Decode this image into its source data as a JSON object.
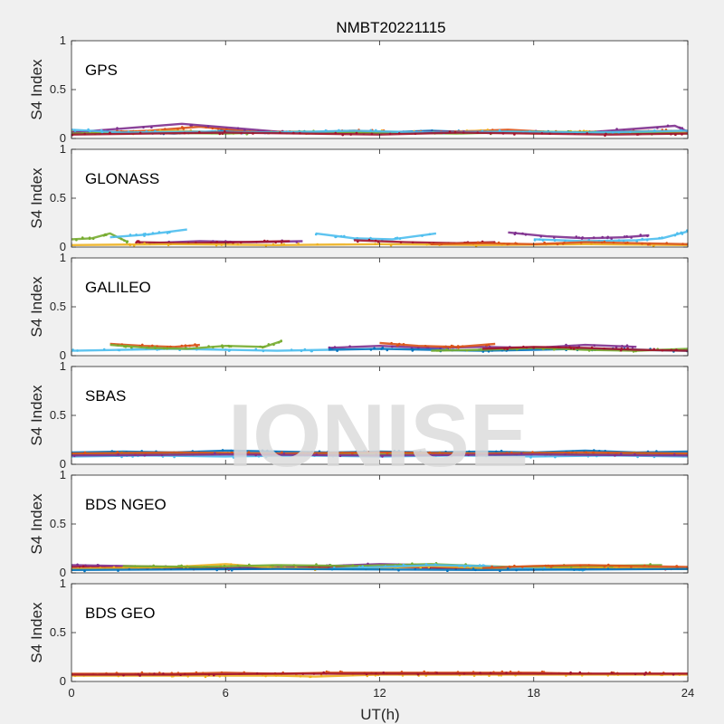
{
  "chart_data": {
    "type": "scatter",
    "title": "NMBT20221115",
    "xlabel": "UT(h)",
    "ylabel": "S4 Index",
    "xlim": [
      0,
      24
    ],
    "ylim": [
      0,
      1
    ],
    "xticks": [
      "0",
      "6",
      "12",
      "18",
      "24"
    ],
    "yticks": [
      "0",
      "0.5",
      "1"
    ],
    "watermark": "IONISE",
    "colors": [
      "#0072BD",
      "#D95319",
      "#EDB120",
      "#7E2F8E",
      "#77AC30",
      "#4DBEEE",
      "#A2142F"
    ],
    "panels": [
      {
        "name": "GPS",
        "series": [
          {
            "color": "#0072BD",
            "x": [
              0,
              2,
              4,
              6,
              8,
              10,
              12,
              14,
              16,
              18,
              20,
              22,
              24
            ],
            "y": [
              0.06,
              0.07,
              0.05,
              0.08,
              0.06,
              0.07,
              0.06,
              0.08,
              0.06,
              0.07,
              0.06,
              0.07,
              0.06
            ]
          },
          {
            "color": "#D95319",
            "x": [
              0,
              3,
              5,
              7,
              9,
              11,
              13,
              15,
              17,
              19,
              21,
              24
            ],
            "y": [
              0.05,
              0.08,
              0.12,
              0.07,
              0.06,
              0.08,
              0.06,
              0.07,
              0.09,
              0.06,
              0.07,
              0.08
            ]
          },
          {
            "color": "#EDB120",
            "x": [
              0,
              2,
              4,
              6,
              8,
              10,
              12,
              14,
              16,
              18,
              20,
              22,
              24
            ],
            "y": [
              0.07,
              0.05,
              0.08,
              0.06,
              0.07,
              0.05,
              0.07,
              0.06,
              0.08,
              0.05,
              0.07,
              0.06,
              0.07
            ]
          },
          {
            "color": "#7E2F8E",
            "x": [
              0,
              4.3,
              8,
              12,
              16,
              20,
              23.5,
              24
            ],
            "y": [
              0.06,
              0.15,
              0.07,
              0.06,
              0.07,
              0.06,
              0.13,
              0.07
            ]
          },
          {
            "color": "#77AC30",
            "x": [
              0,
              3,
              6,
              9,
              12,
              15,
              18,
              21,
              24
            ],
            "y": [
              0.05,
              0.06,
              0.05,
              0.07,
              0.06,
              0.05,
              0.07,
              0.06,
              0.05
            ]
          },
          {
            "color": "#4DBEEE",
            "x": [
              0,
              2,
              5,
              8,
              11,
              14,
              17,
              20,
              24
            ],
            "y": [
              0.09,
              0.06,
              0.07,
              0.06,
              0.08,
              0.06,
              0.07,
              0.06,
              0.08
            ]
          },
          {
            "color": "#A2142F",
            "x": [
              0,
              3,
              6,
              9,
              12,
              15,
              18,
              21,
              24
            ],
            "y": [
              0.04,
              0.05,
              0.06,
              0.05,
              0.04,
              0.06,
              0.05,
              0.04,
              0.05
            ]
          }
        ]
      },
      {
        "name": "GLONASS",
        "series": [
          {
            "color": "#77AC30",
            "x": [
              0,
              0.8,
              1.5,
              2.2
            ],
            "y": [
              0.08,
              0.09,
              0.14,
              0.05
            ]
          },
          {
            "color": "#4DBEEE",
            "x": [
              1.5,
              3,
              4.5
            ],
            "y": [
              0.1,
              0.13,
              0.18
            ]
          },
          {
            "color": "#7E2F8E",
            "x": [
              3,
              5,
              7,
              9
            ],
            "y": [
              0.04,
              0.06,
              0.05,
              0.06
            ]
          },
          {
            "color": "#A2142F",
            "x": [
              2.5,
              4.5,
              6.5,
              8.5
            ],
            "y": [
              0.05,
              0.04,
              0.05,
              0.06
            ]
          },
          {
            "color": "#4DBEEE",
            "x": [
              9.5,
              11,
              12.5,
              14.2
            ],
            "y": [
              0.14,
              0.09,
              0.08,
              0.14
            ]
          },
          {
            "color": "#A2142F",
            "x": [
              11,
              13,
              15,
              16.5
            ],
            "y": [
              0.07,
              0.05,
              0.04,
              0.05
            ]
          },
          {
            "color": "#7E2F8E",
            "x": [
              17,
              18.5,
              20,
              21.5,
              22.5
            ],
            "y": [
              0.15,
              0.11,
              0.09,
              0.1,
              0.12
            ]
          },
          {
            "color": "#4DBEEE",
            "x": [
              18,
              20,
              22,
              23,
              24
            ],
            "y": [
              0.08,
              0.06,
              0.07,
              0.09,
              0.16
            ]
          },
          {
            "color": "#EDB120",
            "x": [
              0,
              4,
              8,
              12,
              16,
              20,
              24
            ],
            "y": [
              0.02,
              0.03,
              0.02,
              0.03,
              0.02,
              0.03,
              0.02
            ]
          },
          {
            "color": "#D95319",
            "x": [
              14,
              16,
              18,
              20,
              22,
              24
            ],
            "y": [
              0.03,
              0.04,
              0.03,
              0.05,
              0.04,
              0.03
            ]
          }
        ]
      },
      {
        "name": "GALILEO",
        "series": [
          {
            "color": "#4DBEEE",
            "x": [
              0,
              2,
              4,
              6,
              8,
              10
            ],
            "y": [
              0.05,
              0.06,
              0.07,
              0.06,
              0.05,
              0.06
            ]
          },
          {
            "color": "#D95319",
            "x": [
              1.5,
              2.8,
              4,
              5
            ],
            "y": [
              0.12,
              0.1,
              0.09,
              0.11
            ]
          },
          {
            "color": "#77AC30",
            "x": [
              1.5,
              3,
              4.5,
              6,
              7.5,
              8.2
            ],
            "y": [
              0.11,
              0.08,
              0.07,
              0.1,
              0.09,
              0.15
            ]
          },
          {
            "color": "#7E2F8E",
            "x": [
              10,
              12,
              14,
              16,
              18,
              20,
              22
            ],
            "y": [
              0.08,
              0.1,
              0.08,
              0.09,
              0.08,
              0.11,
              0.09
            ]
          },
          {
            "color": "#D95319",
            "x": [
              12,
              13.5,
              15,
              16.5
            ],
            "y": [
              0.13,
              0.1,
              0.09,
              0.12
            ]
          },
          {
            "color": "#0072BD",
            "x": [
              10,
              12,
              14,
              16,
              18,
              20,
              22,
              24
            ],
            "y": [
              0.06,
              0.07,
              0.06,
              0.05,
              0.06,
              0.07,
              0.06,
              0.05
            ]
          },
          {
            "color": "#77AC30",
            "x": [
              14,
              16,
              18,
              20,
              22,
              24
            ],
            "y": [
              0.05,
              0.06,
              0.08,
              0.06,
              0.05,
              0.07
            ]
          },
          {
            "color": "#A2142F",
            "x": [
              16,
              18,
              20,
              22,
              24
            ],
            "y": [
              0.07,
              0.09,
              0.08,
              0.06,
              0.05
            ]
          }
        ]
      },
      {
        "name": "SBAS",
        "series": [
          {
            "color": "#0072BD",
            "x": [
              0,
              2,
              4,
              6,
              8,
              10,
              12,
              14,
              16,
              18,
              20,
              22,
              24
            ],
            "y": [
              0.12,
              0.13,
              0.12,
              0.14,
              0.13,
              0.12,
              0.13,
              0.12,
              0.13,
              0.12,
              0.14,
              0.12,
              0.13
            ]
          },
          {
            "color": "#77AC30",
            "x": [
              0,
              2,
              4,
              6,
              8,
              10,
              12,
              14,
              16,
              18,
              20,
              22,
              24
            ],
            "y": [
              0.1,
              0.11,
              0.1,
              0.11,
              0.1,
              0.11,
              0.1,
              0.11,
              0.1,
              0.11,
              0.1,
              0.11,
              0.1
            ]
          },
          {
            "color": "#4DBEEE",
            "x": [
              0,
              3,
              6,
              9,
              12,
              15,
              18,
              21,
              24
            ],
            "y": [
              0.08,
              0.09,
              0.08,
              0.09,
              0.08,
              0.09,
              0.08,
              0.09,
              0.08
            ]
          },
          {
            "color": "#D95319",
            "x": [
              0,
              4,
              8,
              12,
              16,
              20,
              24
            ],
            "y": [
              0.11,
              0.12,
              0.11,
              0.12,
              0.11,
              0.12,
              0.11
            ]
          },
          {
            "color": "#7E2F8E",
            "x": [
              0,
              6,
              12,
              18,
              24
            ],
            "y": [
              0.09,
              0.1,
              0.09,
              0.1,
              0.09
            ]
          }
        ]
      },
      {
        "name": "BDS NGEO",
        "series": [
          {
            "color": "#7E2F8E",
            "x": [
              0,
              2,
              4,
              6,
              8,
              10,
              12,
              14,
              16
            ],
            "y": [
              0.08,
              0.07,
              0.06,
              0.05,
              0.06,
              0.07,
              0.09,
              0.08,
              0.06
            ]
          },
          {
            "color": "#A2142F",
            "x": [
              0,
              3,
              6,
              9,
              12,
              15,
              18,
              21,
              24
            ],
            "y": [
              0.06,
              0.05,
              0.04,
              0.05,
              0.06,
              0.05,
              0.04,
              0.05,
              0.04
            ]
          },
          {
            "color": "#EDB120",
            "x": [
              0,
              2,
              4,
              6,
              8,
              10,
              12,
              14,
              16,
              18,
              20,
              22,
              24
            ],
            "y": [
              0.04,
              0.05,
              0.06,
              0.09,
              0.05,
              0.04,
              0.05,
              0.07,
              0.05,
              0.04,
              0.06,
              0.05,
              0.04
            ]
          },
          {
            "color": "#77AC30",
            "x": [
              2,
              5,
              8,
              11,
              14,
              17,
              20,
              23
            ],
            "y": [
              0.07,
              0.06,
              0.08,
              0.07,
              0.09,
              0.06,
              0.07,
              0.08
            ]
          },
          {
            "color": "#4DBEEE",
            "x": [
              10,
              12,
              14,
              16,
              18,
              20
            ],
            "y": [
              0.04,
              0.06,
              0.08,
              0.07,
              0.04,
              0.03
            ]
          },
          {
            "color": "#D95319",
            "x": [
              16,
              18,
              20,
              22,
              24
            ],
            "y": [
              0.05,
              0.07,
              0.08,
              0.07,
              0.06
            ]
          },
          {
            "color": "#0072BD",
            "x": [
              0,
              8,
              16,
              24
            ],
            "y": [
              0.03,
              0.04,
              0.03,
              0.04
            ]
          }
        ]
      },
      {
        "name": "BDS GEO",
        "series": [
          {
            "color": "#D95319",
            "x": [
              0,
              2,
              4,
              6,
              8,
              10,
              12,
              14,
              16,
              18,
              20,
              22,
              24
            ],
            "y": [
              0.08,
              0.08,
              0.08,
              0.09,
              0.08,
              0.09,
              0.09,
              0.09,
              0.09,
              0.09,
              0.08,
              0.08,
              0.08
            ]
          },
          {
            "color": "#EDB120",
            "x": [
              0,
              2,
              4,
              6,
              8,
              9.5,
              12,
              14,
              16,
              18,
              20,
              22,
              24
            ],
            "y": [
              0.06,
              0.06,
              0.06,
              0.06,
              0.06,
              0.05,
              0.07,
              0.07,
              0.07,
              0.07,
              0.07,
              0.07,
              0.07
            ]
          },
          {
            "color": "#A2142F",
            "x": [
              0,
              4,
              8,
              12,
              16,
              20,
              24
            ],
            "y": [
              0.07,
              0.07,
              0.08,
              0.08,
              0.08,
              0.08,
              0.08
            ]
          }
        ]
      }
    ]
  }
}
